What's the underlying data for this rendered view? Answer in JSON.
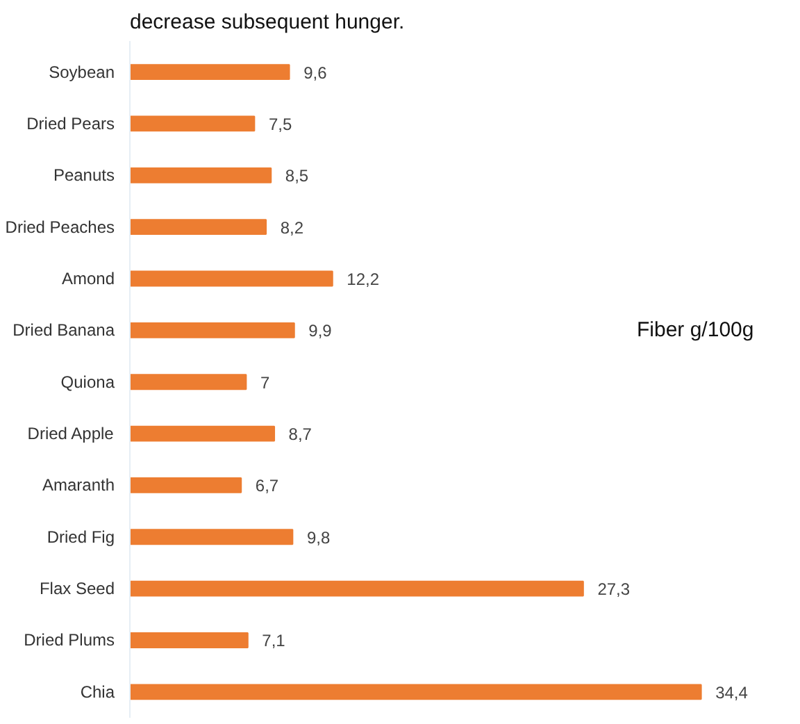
{
  "chart_data": {
    "type": "bar",
    "orientation": "horizontal",
    "title": "Fiber g/100g",
    "annotations": [
      "decrease subsequent hunger."
    ],
    "categories": [
      "Soybean",
      "Dried Pears",
      "Peanuts",
      "Dried Peaches",
      "Amond",
      "Dried Banana",
      "Quiona",
      "Dried Apple",
      "Amaranth",
      "Dried Fig",
      "Flax Seed",
      "Dried Plums",
      "Chia"
    ],
    "values": [
      9.6,
      7.5,
      8.5,
      8.2,
      12.2,
      9.9,
      7,
      8.7,
      6.7,
      9.8,
      27.3,
      7.1,
      34.4
    ],
    "value_labels": [
      "9,6",
      "7,5",
      "8,5",
      "8,2",
      "12,2",
      "9,9",
      "7",
      "8,7",
      "6,7",
      "9,8",
      "27,3",
      "7,1",
      "34,4"
    ],
    "color": "#ed7d31",
    "grid": false
  }
}
